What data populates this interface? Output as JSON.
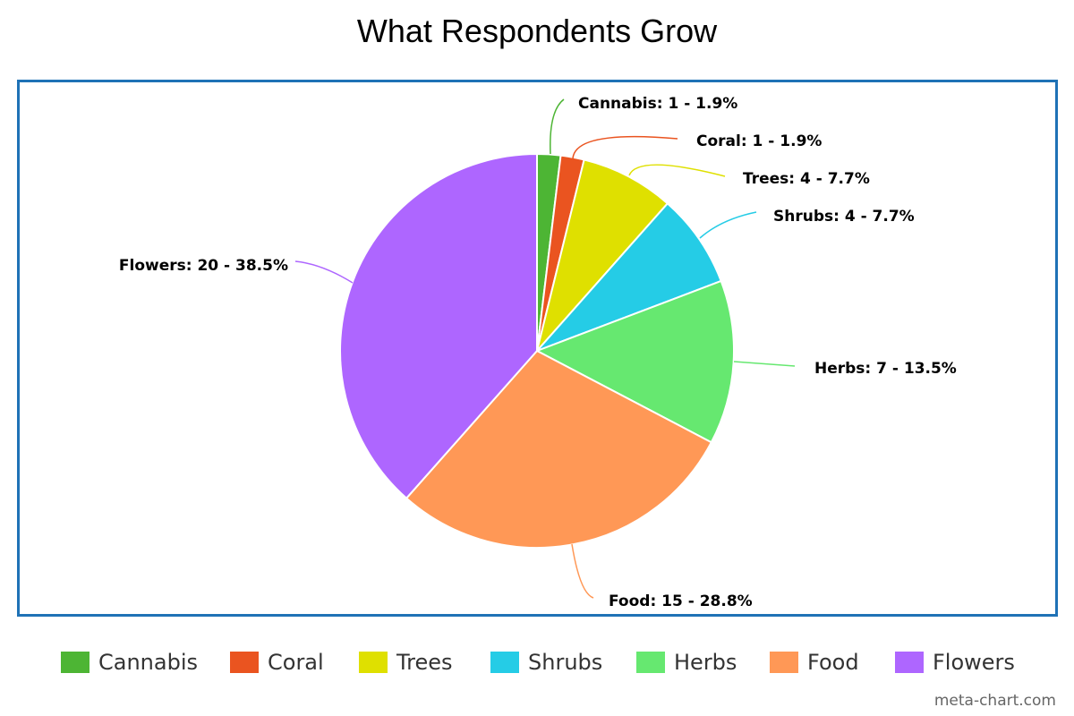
{
  "chart_data": {
    "type": "pie",
    "title": "What Respondents Grow",
    "slices": [
      {
        "name": "Cannabis",
        "value": 1,
        "percent": "1.9%",
        "label": "Cannabis: 1 - 1.9%",
        "color": "#4db534"
      },
      {
        "name": "Coral",
        "value": 1,
        "percent": "1.9%",
        "label": "Coral: 1 - 1.9%",
        "color": "#ea5420"
      },
      {
        "name": "Trees",
        "value": 4,
        "percent": "7.7%",
        "label": "Trees: 4 - 7.7%",
        "color": "#dfe000"
      },
      {
        "name": "Shrubs",
        "value": 4,
        "percent": "7.7%",
        "label": "Shrubs: 4 - 7.7%",
        "color": "#25cce6"
      },
      {
        "name": "Herbs",
        "value": 7,
        "percent": "13.5%",
        "label": "Herbs: 7 - 13.5%",
        "color": "#66e870"
      },
      {
        "name": "Food",
        "value": 15,
        "percent": "28.8%",
        "label": "Food: 15 - 28.8%",
        "color": "#ff9856"
      },
      {
        "name": "Flowers",
        "value": 20,
        "percent": "38.5%",
        "label": "Flowers: 20 - 38.5%",
        "color": "#ae66ff"
      }
    ],
    "legend_position": "bottom"
  },
  "frame_color": "#1f72b6",
  "credit": "meta-chart.com"
}
